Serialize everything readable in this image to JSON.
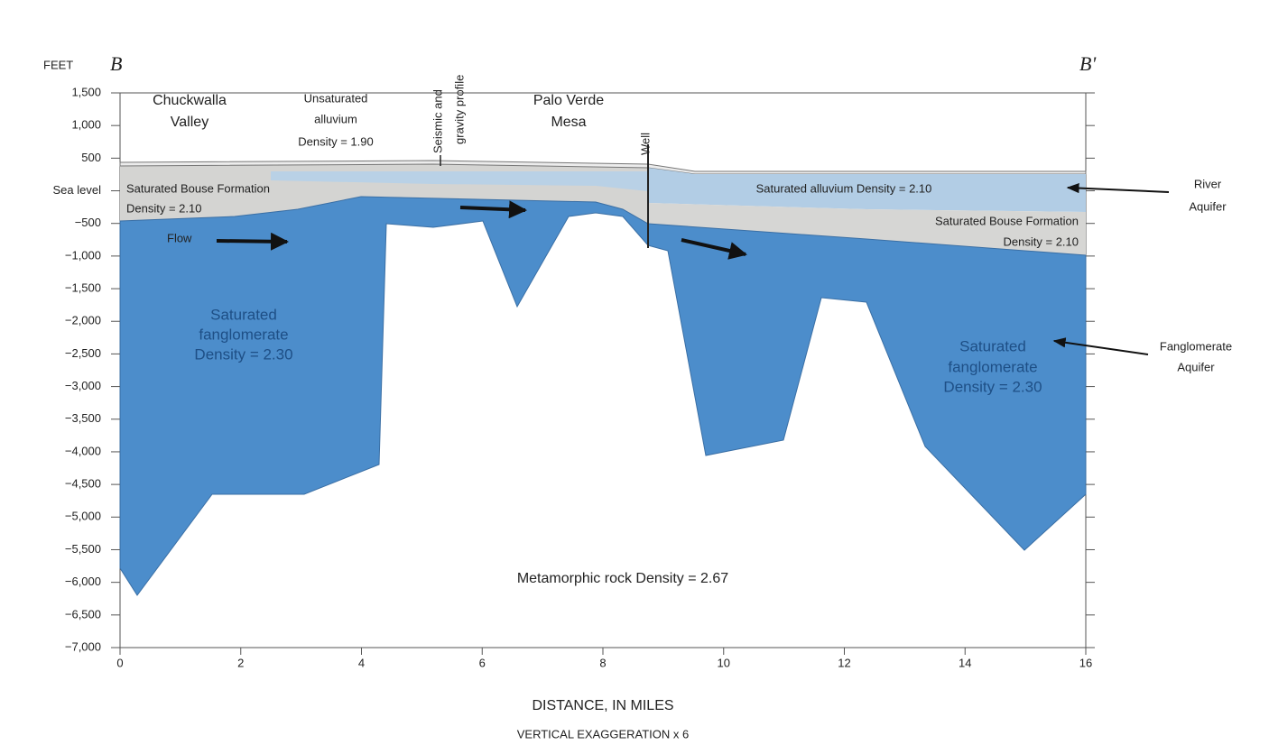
{
  "y_axis": {
    "unit": "FEET",
    "ticks": [
      "1,500",
      "1,000",
      "500",
      "Sea level",
      "−500",
      "−1,000",
      "−1,500",
      "−2,000",
      "−2,500",
      "−3,000",
      "−3,500",
      "−4,000",
      "−4,500",
      "−5,000",
      "−5,500",
      "−6,000",
      "−6,500",
      "−7,000"
    ]
  },
  "x_axis": {
    "ticks": [
      "0",
      "2",
      "4",
      "6",
      "8",
      "10",
      "12",
      "14",
      "16"
    ],
    "title": "DISTANCE, IN MILES",
    "note": "VERTICAL EXAGGERATION x 6"
  },
  "section_ends": [
    "B",
    "B'"
  ],
  "labels": {
    "chuckwalla": [
      "Chuckwalla",
      "Valley"
    ],
    "unsaturated": [
      "Unsaturated",
      "alluvium",
      "Density = 1.90"
    ],
    "seismic": [
      "Seismic and",
      "gravity profile"
    ],
    "palo_verde": [
      "Palo Verde",
      "Mesa"
    ],
    "well": "Well",
    "bouse_left": [
      "Saturated Bouse Formation",
      "Density = 2.10"
    ],
    "alluvium_right": "Saturated alluvium Density = 2.10",
    "bouse_right": [
      "Saturated Bouse Formation",
      "Density = 2.10"
    ],
    "flow": "Flow",
    "fanglomerate_left": [
      "Saturated",
      "fanglomerate",
      "Density = 2.30"
    ],
    "fanglomerate_right": [
      "Saturated",
      "fanglomerate",
      "Density = 2.30"
    ],
    "metamorphic": "Metamorphic rock  Density = 2.67",
    "river_aquifer": [
      "River",
      "Aquifer"
    ],
    "fanglomerate_aquifer": [
      "Fanglomerate",
      "Aquifer"
    ]
  }
}
